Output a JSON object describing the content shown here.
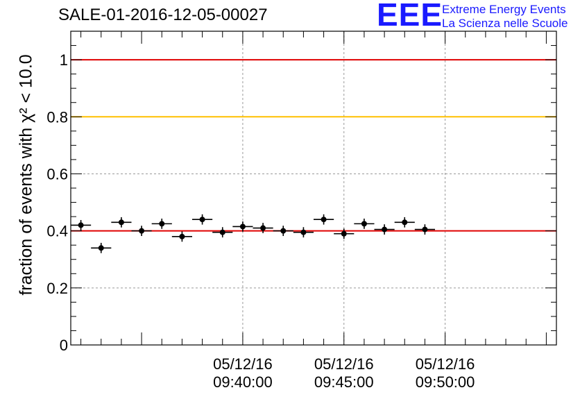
{
  "header": {
    "title": "SALE-01-2016-12-05-00027"
  },
  "logo": {
    "mark": "EEE",
    "line1": "Extreme Energy Events",
    "line2": "La Scienza nelle Scuole"
  },
  "axes": {
    "ylabel": "fraction of events with χ² < 10.0"
  },
  "chart_data": {
    "type": "scatter",
    "title": "SALE-01-2016-12-05-00027",
    "ylabel": "fraction of events with χ² < 10.0",
    "xlabel": "",
    "ylim": [
      0,
      1.1
    ],
    "xlim": [
      "05/12/16 09:31:30",
      "05/12/16 09:55:30"
    ],
    "grid": true,
    "x_ticks": [
      {
        "date": "05/12/16",
        "time": "09:40:00"
      },
      {
        "date": "05/12/16",
        "time": "09:45:00"
      },
      {
        "date": "05/12/16",
        "time": "09:50:00"
      }
    ],
    "y_ticks": [
      "0",
      "0.2",
      "0.4",
      "0.6",
      "0.8",
      "1"
    ],
    "y_tick_values": [
      0,
      0.2,
      0.4,
      0.6,
      0.8,
      1.0
    ],
    "reference_lines": [
      {
        "y": 1.0,
        "color": "#e00000"
      },
      {
        "y": 0.8,
        "color": "#ffc000"
      },
      {
        "y": 0.4,
        "color": "#e00000"
      }
    ],
    "series": [
      {
        "marker_color": "#000000",
        "x": [
          "09:32:00",
          "09:33:00",
          "09:34:00",
          "09:35:00",
          "09:36:00",
          "09:37:00",
          "09:38:00",
          "09:39:00",
          "09:40:00",
          "09:41:00",
          "09:42:00",
          "09:43:00",
          "09:44:00",
          "09:45:00",
          "09:46:00",
          "09:47:00",
          "09:48:00",
          "09:49:00"
        ],
        "y": [
          0.42,
          0.34,
          0.43,
          0.4,
          0.425,
          0.38,
          0.44,
          0.395,
          0.415,
          0.41,
          0.4,
          0.395,
          0.44,
          0.39,
          0.425,
          0.405,
          0.43,
          0.405
        ],
        "y_err": [
          0.018,
          0.018,
          0.018,
          0.018,
          0.018,
          0.018,
          0.018,
          0.018,
          0.018,
          0.018,
          0.018,
          0.018,
          0.018,
          0.018,
          0.018,
          0.018,
          0.018,
          0.018
        ],
        "x_half_width_minutes": 0.5
      }
    ]
  }
}
